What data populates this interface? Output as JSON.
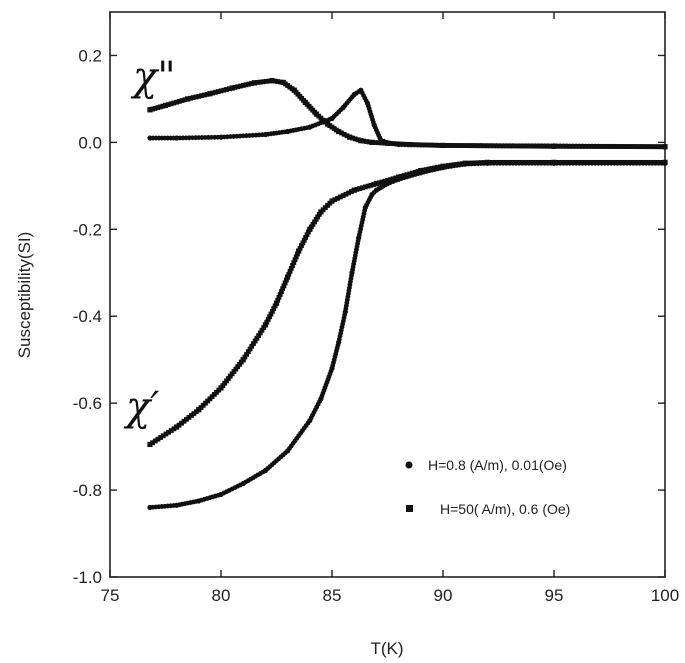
{
  "chart_data": {
    "type": "scatter",
    "title": "",
    "xlabel": "T(K)",
    "ylabel": "Susceptibility(SI)",
    "xlim": [
      75,
      100
    ],
    "ylim": [
      -1.0,
      0.3
    ],
    "xticks": [
      75,
      80,
      85,
      90,
      95,
      100
    ],
    "xtick_labels": [
      "75",
      "80",
      "85",
      "90",
      "95",
      "100"
    ],
    "yticks": [
      -1.0,
      -0.8,
      -0.6,
      -0.4,
      -0.2,
      0.0,
      0.2
    ],
    "ytick_labels": [
      "-1.0",
      "-0.8",
      "-0.6",
      "-0.4",
      "-0.2",
      "0.0",
      "0.2"
    ],
    "grid": false,
    "legend_position": "bottom-right",
    "colors": {
      "marker": "#111111",
      "axis": "#222222",
      "background": "#ffffff"
    },
    "annotations": [
      {
        "id": "chi-double-prime",
        "text": "χ\""
      },
      {
        "id": "chi-prime",
        "text": "χ′"
      }
    ],
    "legend": [
      {
        "label": "H=0.8 (A/m), 0.01(Oe)",
        "marker": "circle"
      },
      {
        "label": "H=50( A/m), 0.6 (Oe)",
        "marker": "square"
      }
    ],
    "series": [
      {
        "name": "H=0.8 (A/m), 0.01(Oe)",
        "component": "chi-prime",
        "marker": "circle",
        "x": [
          76.8,
          78,
          79,
          80,
          81,
          82,
          83,
          84,
          84.5,
          85,
          85.3,
          85.6,
          85.9,
          86.2,
          86.5,
          86.8,
          87,
          87.5,
          88,
          89,
          90,
          91,
          92,
          95,
          100
        ],
        "y": [
          -0.84,
          -0.835,
          -0.825,
          -0.81,
          -0.785,
          -0.755,
          -0.71,
          -0.64,
          -0.59,
          -0.52,
          -0.46,
          -0.39,
          -0.3,
          -0.22,
          -0.15,
          -0.12,
          -0.11,
          -0.095,
          -0.085,
          -0.07,
          -0.058,
          -0.05,
          -0.048,
          -0.048,
          -0.048
        ]
      },
      {
        "name": "H=0.8 (A/m), 0.01(Oe)",
        "component": "chi-double-prime",
        "marker": "circle",
        "x": [
          76.8,
          78,
          80,
          82,
          83,
          84,
          85,
          85.5,
          86,
          86.3,
          86.6,
          86.9,
          87.2,
          87.6,
          88,
          90,
          95,
          100
        ],
        "y": [
          0.01,
          0.01,
          0.012,
          0.018,
          0.025,
          0.035,
          0.055,
          0.08,
          0.11,
          0.12,
          0.09,
          0.04,
          0.005,
          -0.002,
          -0.005,
          -0.007,
          -0.008,
          -0.01
        ]
      },
      {
        "name": "H=50( A/m), 0.6 (Oe)",
        "component": "chi-prime",
        "marker": "square",
        "x": [
          76.8,
          78,
          79,
          80,
          81,
          82,
          82.5,
          83,
          83.5,
          84,
          84.5,
          85,
          86,
          87,
          88,
          89,
          90,
          91,
          92,
          95,
          100
        ],
        "y": [
          -0.695,
          -0.655,
          -0.615,
          -0.565,
          -0.5,
          -0.42,
          -0.37,
          -0.31,
          -0.25,
          -0.2,
          -0.16,
          -0.135,
          -0.11,
          -0.095,
          -0.08,
          -0.065,
          -0.055,
          -0.048,
          -0.046,
          -0.046,
          -0.046
        ]
      },
      {
        "name": "H=50( A/m), 0.6 (Oe)",
        "component": "chi-double-prime",
        "marker": "square",
        "x": [
          76.8,
          77.5,
          78.5,
          79.5,
          80.5,
          81.5,
          82.3,
          82.8,
          83.3,
          83.8,
          84.3,
          84.8,
          85.3,
          85.8,
          86.3,
          86.8,
          87.5,
          88.5,
          90,
          95,
          100
        ],
        "y": [
          0.075,
          0.085,
          0.1,
          0.112,
          0.125,
          0.137,
          0.142,
          0.138,
          0.12,
          0.092,
          0.065,
          0.042,
          0.025,
          0.012,
          0.004,
          0.0,
          -0.002,
          -0.005,
          -0.007,
          -0.009,
          -0.01
        ]
      }
    ]
  }
}
